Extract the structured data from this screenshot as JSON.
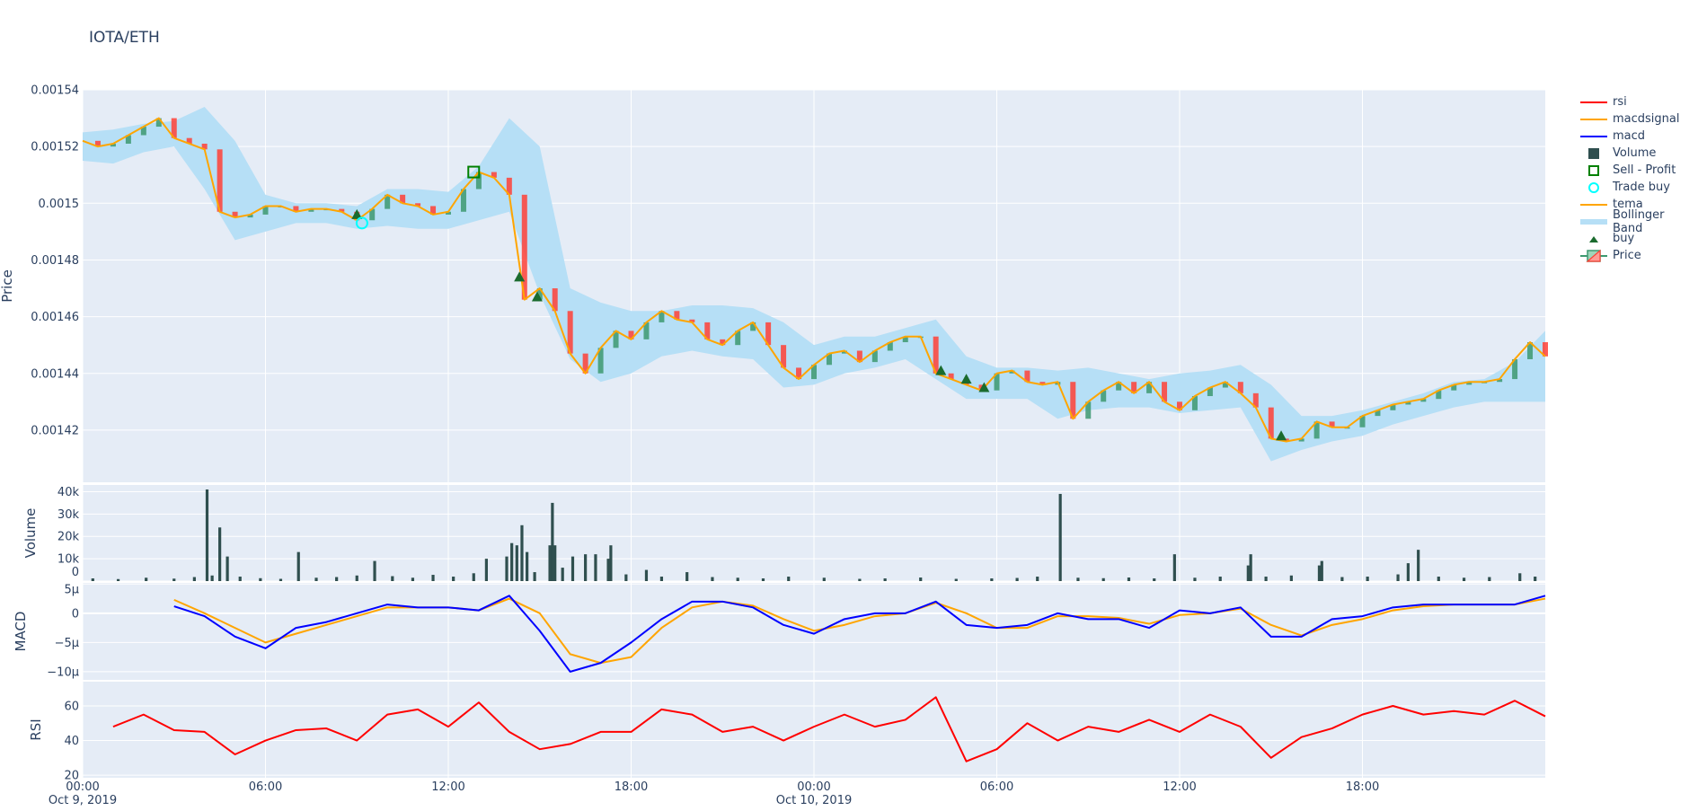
{
  "title": "IOTA/ETH",
  "colors": {
    "plot_bg": "#e5ecf6",
    "grid": "#ffffff",
    "increasing": "#3D9970",
    "decreasing": "#FF4136",
    "bollinger": "#b6dff6",
    "tema": "#FFA500",
    "macd": "#0000FF",
    "macdsignal": "#FFA500",
    "rsi": "#FF0000",
    "volume": "#2F4F4F",
    "buy": "#1a6b2e",
    "trade_buy": "#00FFFF",
    "sell_profit": "#008000"
  },
  "legend": {
    "placement": "right",
    "items": [
      {
        "label": "rsi",
        "icon": "line",
        "color": "#FF0000"
      },
      {
        "label": "macdsignal",
        "icon": "line",
        "color": "#FFA500"
      },
      {
        "label": "macd",
        "icon": "line",
        "color": "#0000FF"
      },
      {
        "label": "Volume",
        "icon": "square-filled",
        "color": "#2F4F4F"
      },
      {
        "label": "Sell - Profit",
        "icon": "square-open",
        "color": "#008000"
      },
      {
        "label": "Trade buy",
        "icon": "circle-open",
        "color": "#00FFFF"
      },
      {
        "label": "tema",
        "icon": "line",
        "color": "#FFA500"
      },
      {
        "label": "Bollinger Band",
        "icon": "band",
        "color": "#b6dff6"
      },
      {
        "label": "buy",
        "icon": "triangle-up",
        "color": "#1a6b2e"
      },
      {
        "label": "Price",
        "icon": "candlestick",
        "color": "#3D9970"
      }
    ]
  },
  "chart_data": {
    "type": "candlestick",
    "x_axis": {
      "range": [
        "2019-10-09T00:00",
        "2019-10-11T00:00"
      ],
      "ticks": [
        {
          "t": "2019-10-09T00:00",
          "label": "00:00",
          "sublabel": "Oct 9, 2019"
        },
        {
          "t": "2019-10-09T06:00",
          "label": "06:00",
          "sublabel": ""
        },
        {
          "t": "2019-10-09T12:00",
          "label": "12:00",
          "sublabel": ""
        },
        {
          "t": "2019-10-09T18:00",
          "label": "18:00",
          "sublabel": ""
        },
        {
          "t": "2019-10-10T00:00",
          "label": "00:00",
          "sublabel": "Oct 10, 2019"
        },
        {
          "t": "2019-10-10T06:00",
          "label": "06:00",
          "sublabel": ""
        },
        {
          "t": "2019-10-10T12:00",
          "label": "12:00",
          "sublabel": ""
        },
        {
          "t": "2019-10-10T18:00",
          "label": "18:00",
          "sublabel": ""
        }
      ]
    },
    "panels": {
      "price": {
        "ylabel": "Price",
        "ylim": [
          0.0014016,
          0.00154
        ],
        "ticks": [
          {
            "v": 0.00142,
            "label": "0.00142"
          },
          {
            "v": 0.00144,
            "label": "0.00144"
          },
          {
            "v": 0.00146,
            "label": "0.00146"
          },
          {
            "v": 0.00148,
            "label": "0.00148"
          },
          {
            "v": 0.0015,
            "label": "0.0015"
          },
          {
            "v": 0.00152,
            "label": "0.00152"
          },
          {
            "v": 0.00154,
            "label": "0.00154"
          }
        ]
      },
      "volume": {
        "ylabel": "Volume",
        "ylim": [
          0,
          43000
        ],
        "ticks": [
          {
            "v": 0,
            "label": "0"
          },
          {
            "v": 10000,
            "label": "10k"
          },
          {
            "v": 20000,
            "label": "20k"
          },
          {
            "v": 30000,
            "label": "30k"
          },
          {
            "v": 40000,
            "label": "40k"
          }
        ]
      },
      "macd": {
        "ylabel": "MACD",
        "ylim": [
          -1.14e-05,
          5.2e-06
        ],
        "ticks": [
          {
            "v": 5e-06,
            "label": "5µ"
          },
          {
            "v": 0,
            "label": "0"
          },
          {
            "v": -5e-06,
            "label": "−5µ"
          },
          {
            "v": -1e-05,
            "label": "−10µ"
          }
        ]
      },
      "rsi": {
        "ylabel": "RSI",
        "ylim": [
          18.5,
          74
        ],
        "ticks": [
          {
            "v": 20,
            "label": "20"
          },
          {
            "v": 40,
            "label": "40"
          },
          {
            "v": 60,
            "label": "60"
          }
        ]
      }
    },
    "price_x": [
      "2019-10-09T00:00",
      "2019-10-09T00:30",
      "2019-10-09T01:00",
      "2019-10-09T01:30",
      "2019-10-09T02:00",
      "2019-10-09T02:30",
      "2019-10-09T03:00",
      "2019-10-09T03:30",
      "2019-10-09T04:00",
      "2019-10-09T04:30",
      "2019-10-09T05:00",
      "2019-10-09T05:30",
      "2019-10-09T06:00",
      "2019-10-09T06:30",
      "2019-10-09T07:00",
      "2019-10-09T07:30",
      "2019-10-09T08:00",
      "2019-10-09T08:30",
      "2019-10-09T09:00",
      "2019-10-09T09:30",
      "2019-10-09T10:00",
      "2019-10-09T10:30",
      "2019-10-09T11:00",
      "2019-10-09T11:30",
      "2019-10-09T12:00",
      "2019-10-09T12:30",
      "2019-10-09T13:00",
      "2019-10-09T13:30",
      "2019-10-09T14:00",
      "2019-10-09T14:30",
      "2019-10-09T15:00",
      "2019-10-09T15:30",
      "2019-10-09T16:00",
      "2019-10-09T16:30",
      "2019-10-09T17:00",
      "2019-10-09T17:30",
      "2019-10-09T18:00",
      "2019-10-09T18:30",
      "2019-10-09T19:00",
      "2019-10-09T19:30",
      "2019-10-09T20:00",
      "2019-10-09T20:30",
      "2019-10-09T21:00",
      "2019-10-09T21:30",
      "2019-10-09T22:00",
      "2019-10-09T22:30",
      "2019-10-09T23:00",
      "2019-10-09T23:30",
      "2019-10-10T00:00",
      "2019-10-10T00:30",
      "2019-10-10T01:00",
      "2019-10-10T01:30",
      "2019-10-10T02:00",
      "2019-10-10T02:30",
      "2019-10-10T03:00",
      "2019-10-10T03:30",
      "2019-10-10T04:00",
      "2019-10-10T04:30",
      "2019-10-10T05:00",
      "2019-10-10T05:30",
      "2019-10-10T06:00",
      "2019-10-10T06:30",
      "2019-10-10T07:00",
      "2019-10-10T07:30",
      "2019-10-10T08:00",
      "2019-10-10T08:30",
      "2019-10-10T09:00",
      "2019-10-10T09:30",
      "2019-10-10T10:00",
      "2019-10-10T10:30",
      "2019-10-10T11:00",
      "2019-10-10T11:30",
      "2019-10-10T12:00",
      "2019-10-10T12:30",
      "2019-10-10T13:00",
      "2019-10-10T13:30",
      "2019-10-10T14:00",
      "2019-10-10T14:30",
      "2019-10-10T15:00",
      "2019-10-10T15:30",
      "2019-10-10T16:00",
      "2019-10-10T16:30",
      "2019-10-10T17:00",
      "2019-10-10T17:30",
      "2019-10-10T18:00",
      "2019-10-10T18:30",
      "2019-10-10T19:00",
      "2019-10-10T19:30",
      "2019-10-10T20:00",
      "2019-10-10T20:30",
      "2019-10-10T21:00",
      "2019-10-10T21:30",
      "2019-10-10T22:00",
      "2019-10-10T22:30",
      "2019-10-10T23:00",
      "2019-10-10T23:30",
      "2019-10-11T00:00"
    ],
    "close": [
      0.001522,
      0.00152,
      0.001521,
      0.001524,
      0.001527,
      0.00153,
      0.001523,
      0.001521,
      0.001519,
      0.001497,
      0.001495,
      0.001496,
      0.001499,
      0.001499,
      0.001497,
      0.001498,
      0.001498,
      0.001497,
      0.001494,
      0.001498,
      0.001503,
      0.0015,
      0.001499,
      0.001496,
      0.001497,
      0.001505,
      0.001511,
      0.001509,
      0.001503,
      0.001466,
      0.00147,
      0.001462,
      0.001447,
      0.00144,
      0.001449,
      0.001455,
      0.001452,
      0.001458,
      0.001462,
      0.001459,
      0.001458,
      0.001452,
      0.00145,
      0.001455,
      0.001458,
      0.00145,
      0.001442,
      0.001438,
      0.001443,
      0.001447,
      0.001448,
      0.001444,
      0.001448,
      0.001451,
      0.001453,
      0.001453,
      0.00144,
      0.001438,
      0.001436,
      0.001434,
      0.00144,
      0.001441,
      0.001437,
      0.001436,
      0.001437,
      0.001424,
      0.00143,
      0.001434,
      0.001437,
      0.001433,
      0.001437,
      0.00143,
      0.001427,
      0.001432,
      0.001435,
      0.001437,
      0.001433,
      0.001428,
      0.001417,
      0.001416,
      0.001417,
      0.001423,
      0.001421,
      0.001421,
      0.001425,
      0.001427,
      0.001429,
      0.00143,
      0.001431,
      0.001434,
      0.001436,
      0.001437,
      0.001437,
      0.001438,
      0.001445,
      0.001451,
      0.001446
    ],
    "hour_x": [
      "2019-10-09T00:00",
      "2019-10-09T01:00",
      "2019-10-09T02:00",
      "2019-10-09T03:00",
      "2019-10-09T04:00",
      "2019-10-09T05:00",
      "2019-10-09T06:00",
      "2019-10-09T07:00",
      "2019-10-09T08:00",
      "2019-10-09T09:00",
      "2019-10-09T10:00",
      "2019-10-09T11:00",
      "2019-10-09T12:00",
      "2019-10-09T13:00",
      "2019-10-09T14:00",
      "2019-10-09T15:00",
      "2019-10-09T16:00",
      "2019-10-09T17:00",
      "2019-10-09T18:00",
      "2019-10-09T19:00",
      "2019-10-09T20:00",
      "2019-10-09T21:00",
      "2019-10-09T22:00",
      "2019-10-09T23:00",
      "2019-10-10T00:00",
      "2019-10-10T01:00",
      "2019-10-10T02:00",
      "2019-10-10T03:00",
      "2019-10-10T04:00",
      "2019-10-10T05:00",
      "2019-10-10T06:00",
      "2019-10-10T07:00",
      "2019-10-10T08:00",
      "2019-10-10T09:00",
      "2019-10-10T10:00",
      "2019-10-10T11:00",
      "2019-10-10T12:00",
      "2019-10-10T13:00",
      "2019-10-10T14:00",
      "2019-10-10T15:00",
      "2019-10-10T16:00",
      "2019-10-10T17:00",
      "2019-10-10T18:00",
      "2019-10-10T19:00",
      "2019-10-10T20:00",
      "2019-10-10T21:00",
      "2019-10-10T22:00",
      "2019-10-10T23:00",
      "2019-10-11T00:00"
    ],
    "bb_upper": [
      0.001525,
      0.001526,
      0.001528,
      0.001529,
      0.001534,
      0.001522,
      0.001503,
      0.0015,
      0.0015,
      0.001499,
      0.001505,
      0.001505,
      0.001504,
      0.001513,
      0.00153,
      0.00152,
      0.00147,
      0.001465,
      0.001462,
      0.001462,
      0.001464,
      0.001464,
      0.001463,
      0.001458,
      0.00145,
      0.001453,
      0.001453,
      0.001456,
      0.001459,
      0.001446,
      0.001442,
      0.001442,
      0.001441,
      0.001442,
      0.00144,
      0.001438,
      0.00144,
      0.001441,
      0.001443,
      0.001436,
      0.001425,
      0.001425,
      0.001427,
      0.00143,
      0.001433,
      0.001437,
      0.001438,
      0.001444,
      0.001455
    ],
    "bb_lower": [
      0.001515,
      0.001514,
      0.001518,
      0.00152,
      0.001505,
      0.001487,
      0.00149,
      0.001493,
      0.001493,
      0.001491,
      0.001492,
      0.001491,
      0.001491,
      0.001494,
      0.001497,
      0.001468,
      0.001445,
      0.001437,
      0.00144,
      0.001446,
      0.001448,
      0.001446,
      0.001445,
      0.001435,
      0.001436,
      0.00144,
      0.001442,
      0.001445,
      0.001438,
      0.001431,
      0.001431,
      0.001431,
      0.001424,
      0.001427,
      0.001428,
      0.001428,
      0.001426,
      0.001427,
      0.001428,
      0.001409,
      0.001413,
      0.001416,
      0.001418,
      0.001422,
      0.001425,
      0.001428,
      0.00143,
      0.00143,
      0.00143
    ],
    "macd": [
      null,
      null,
      null,
      1.2e-06,
      -5e-07,
      -4e-06,
      -6e-06,
      -2.5e-06,
      -1.5e-06,
      0,
      1.5e-06,
      1e-06,
      1e-06,
      5e-07,
      3e-06,
      -3e-06,
      -1e-05,
      -8.5e-06,
      -5e-06,
      -1e-06,
      2e-06,
      2e-06,
      1e-06,
      -2e-06,
      -3.5e-06,
      -1e-06,
      0,
      0,
      2e-06,
      -2e-06,
      -2.5e-06,
      -2e-06,
      0,
      -1e-06,
      -1e-06,
      -2.5e-06,
      5e-07,
      0,
      1e-06,
      -4e-06,
      -4e-06,
      -1e-06,
      -5e-07,
      1e-06,
      1.5e-06,
      1.5e-06,
      1.5e-06,
      1.5e-06,
      3e-06
    ],
    "macdsignal": [
      null,
      null,
      null,
      2.3e-06,
      0,
      -2.5e-06,
      -5e-06,
      -3.5e-06,
      -2e-06,
      -5e-07,
      1e-06,
      1e-06,
      1e-06,
      5e-07,
      2.5e-06,
      0,
      -7e-06,
      -8.5e-06,
      -7.5e-06,
      -2.5e-06,
      1e-06,
      2e-06,
      1.3e-06,
      -1e-06,
      -3e-06,
      -2e-06,
      -5e-07,
      0,
      1.8e-06,
      0,
      -2.5e-06,
      -2.5e-06,
      -5e-07,
      -5e-07,
      -8e-07,
      -1.8e-06,
      -3e-07,
      0,
      8e-07,
      -2e-06,
      -3.8e-06,
      -2e-06,
      -1e-06,
      5e-07,
      1.2e-06,
      1.5e-06,
      1.5e-06,
      1.5e-06,
      2.5e-06
    ],
    "rsi": [
      null,
      48,
      55,
      46,
      45,
      32,
      40,
      46,
      47,
      40,
      55,
      58,
      48,
      62,
      45,
      35,
      38,
      45,
      45,
      58,
      55,
      45,
      48,
      40,
      48,
      55,
      48,
      52,
      65,
      28,
      35,
      50,
      40,
      48,
      45,
      52,
      45,
      55,
      48,
      30,
      42,
      47,
      55,
      60,
      55,
      57,
      55,
      63,
      54
    ],
    "volume": [
      [
        "2019-10-09T00:20",
        1200
      ],
      [
        "2019-10-09T01:10",
        900
      ],
      [
        "2019-10-09T02:05",
        1500
      ],
      [
        "2019-10-09T03:00",
        1100
      ],
      [
        "2019-10-09T03:40",
        1800
      ],
      [
        "2019-10-09T04:05",
        41000
      ],
      [
        "2019-10-09T04:15",
        2500
      ],
      [
        "2019-10-09T04:30",
        24000
      ],
      [
        "2019-10-09T04:45",
        11000
      ],
      [
        "2019-10-09T05:10",
        2000
      ],
      [
        "2019-10-09T05:50",
        1300
      ],
      [
        "2019-10-09T06:30",
        1000
      ],
      [
        "2019-10-09T07:05",
        13000
      ],
      [
        "2019-10-09T07:40",
        1500
      ],
      [
        "2019-10-09T08:20",
        1800
      ],
      [
        "2019-10-09T09:00",
        2500
      ],
      [
        "2019-10-09T09:35",
        9000
      ],
      [
        "2019-10-09T10:10",
        2200
      ],
      [
        "2019-10-09T10:50",
        1500
      ],
      [
        "2019-10-09T11:30",
        2800
      ],
      [
        "2019-10-09T12:10",
        2000
      ],
      [
        "2019-10-09T12:50",
        3500
      ],
      [
        "2019-10-09T13:15",
        10000
      ],
      [
        "2019-10-09T13:55",
        11000
      ],
      [
        "2019-10-09T14:05",
        17000
      ],
      [
        "2019-10-09T14:15",
        16000
      ],
      [
        "2019-10-09T14:25",
        25000
      ],
      [
        "2019-10-09T14:35",
        13000
      ],
      [
        "2019-10-09T14:50",
        4000
      ],
      [
        "2019-10-09T15:20",
        16000
      ],
      [
        "2019-10-09T15:25",
        35000
      ],
      [
        "2019-10-09T15:30",
        16000
      ],
      [
        "2019-10-09T15:45",
        6000
      ],
      [
        "2019-10-09T16:05",
        11000
      ],
      [
        "2019-10-09T16:30",
        12000
      ],
      [
        "2019-10-09T16:50",
        12000
      ],
      [
        "2019-10-09T17:15",
        10000
      ],
      [
        "2019-10-09T17:20",
        16000
      ],
      [
        "2019-10-09T17:50",
        3000
      ],
      [
        "2019-10-09T18:30",
        5000
      ],
      [
        "2019-10-09T19:00",
        2000
      ],
      [
        "2019-10-09T19:50",
        4000
      ],
      [
        "2019-10-09T20:40",
        1800
      ],
      [
        "2019-10-09T21:30",
        1500
      ],
      [
        "2019-10-09T22:20",
        1200
      ],
      [
        "2019-10-09T23:10",
        2000
      ],
      [
        "2019-10-10T00:20",
        1500
      ],
      [
        "2019-10-10T01:30",
        1000
      ],
      [
        "2019-10-10T02:20",
        1200
      ],
      [
        "2019-10-10T03:30",
        1600
      ],
      [
        "2019-10-10T04:40",
        1000
      ],
      [
        "2019-10-10T05:50",
        1200
      ],
      [
        "2019-10-10T06:40",
        1400
      ],
      [
        "2019-10-10T07:20",
        2000
      ],
      [
        "2019-10-10T08:05",
        39000
      ],
      [
        "2019-10-10T08:40",
        1500
      ],
      [
        "2019-10-10T09:30",
        1300
      ],
      [
        "2019-10-10T10:20",
        1600
      ],
      [
        "2019-10-10T11:10",
        1200
      ],
      [
        "2019-10-10T11:50",
        12000
      ],
      [
        "2019-10-10T12:30",
        1500
      ],
      [
        "2019-10-10T13:20",
        2000
      ],
      [
        "2019-10-10T14:15",
        7000
      ],
      [
        "2019-10-10T14:20",
        12000
      ],
      [
        "2019-10-10T14:50",
        2000
      ],
      [
        "2019-10-10T15:40",
        2500
      ],
      [
        "2019-10-10T16:35",
        7000
      ],
      [
        "2019-10-10T16:40",
        9000
      ],
      [
        "2019-10-10T17:20",
        1800
      ],
      [
        "2019-10-10T18:10",
        2000
      ],
      [
        "2019-10-10T19:10",
        3000
      ],
      [
        "2019-10-10T19:30",
        8000
      ],
      [
        "2019-10-10T19:50",
        14000
      ],
      [
        "2019-10-10T20:30",
        2000
      ],
      [
        "2019-10-10T21:20",
        1500
      ],
      [
        "2019-10-10T22:10",
        1800
      ],
      [
        "2019-10-10T23:10",
        3500
      ],
      [
        "2019-10-10T23:40",
        2000
      ]
    ],
    "buy_markers": [
      [
        "2019-10-09T09:00",
        0.001496
      ],
      [
        "2019-10-09T14:20",
        0.001474
      ],
      [
        "2019-10-09T14:55",
        0.001467
      ],
      [
        "2019-10-10T04:10",
        0.001441
      ],
      [
        "2019-10-10T05:00",
        0.001438
      ],
      [
        "2019-10-10T05:35",
        0.001435
      ],
      [
        "2019-10-10T15:20",
        0.001418
      ]
    ],
    "trade_buy_markers": [
      [
        "2019-10-09T09:10",
        0.001493
      ]
    ],
    "sell_profit_markers": [
      [
        "2019-10-09T12:50",
        0.001511
      ]
    ]
  }
}
